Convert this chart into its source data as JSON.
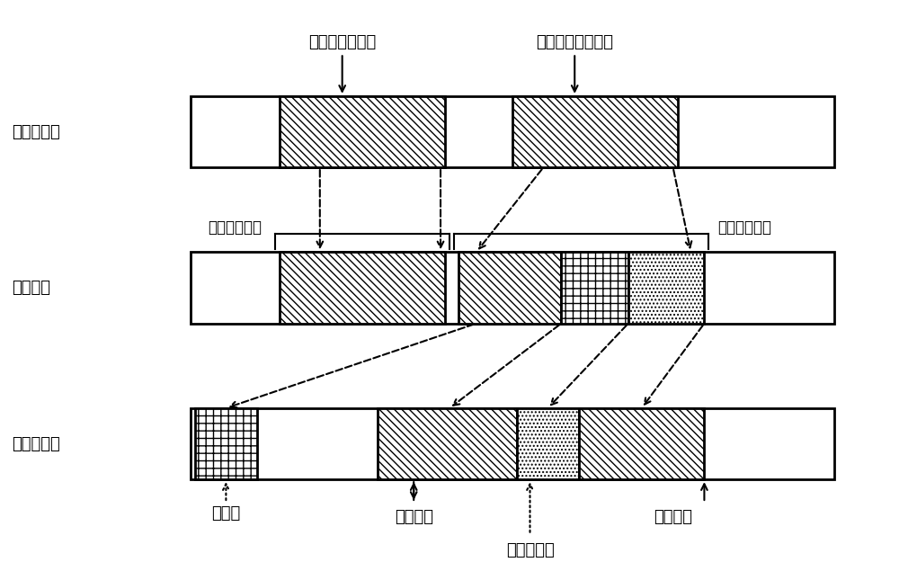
{
  "fig_width": 10.0,
  "fig_height": 6.45,
  "bg_color": "#ffffff",
  "row1_label": "元数据磁盘",
  "row2_label": "本地日志",
  "row3_label": "分布式日志",
  "top_label1": "本地元数据更新",
  "top_label2": "分布式元数据更新",
  "mid_label1": "本地日志事务",
  "mid_label2": "本地日志事务",
  "bot_label_superblock": "超级块",
  "bot_label_oldest": "最久偏移",
  "bot_label_dist_tx": "分布式事务",
  "bot_label_current": "当前偏移",
  "font_size": 13
}
